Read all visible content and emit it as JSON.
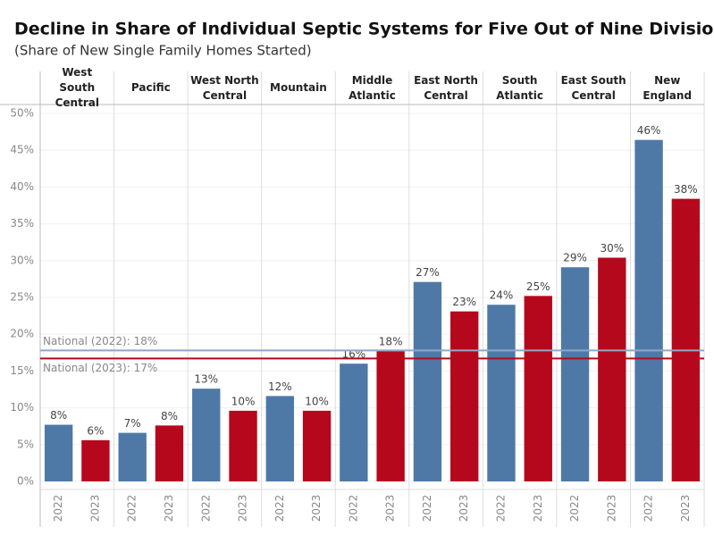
{
  "chart_data": {
    "type": "bar",
    "title": "Decline in Share of Individual Septic Systems for Five Out of Nine Divisions",
    "subtitle": "(Share of New Single Family Homes Started)",
    "categories": [
      "West South Central",
      "Pacific",
      "West North Central",
      "Mountain",
      "Middle Atlantic",
      "East North Central",
      "South Atlantic",
      "East South Central",
      "New England"
    ],
    "series": [
      {
        "name": "2022",
        "color": "#4e79a7",
        "values": [
          7.7,
          6.6,
          12.6,
          11.6,
          16.0,
          27.1,
          24.0,
          29.1,
          46.4
        ],
        "value_labels": [
          "8%",
          "7%",
          "13%",
          "12%",
          "16%",
          "27%",
          "24%",
          "29%",
          "46%"
        ]
      },
      {
        "name": "2023",
        "color": "#b5081c",
        "values": [
          5.6,
          7.6,
          9.6,
          9.6,
          17.7,
          23.1,
          25.2,
          30.4,
          38.4
        ],
        "value_labels": [
          "6%",
          "8%",
          "10%",
          "10%",
          "18%",
          "23%",
          "25%",
          "30%",
          "38%"
        ]
      }
    ],
    "reference_lines": [
      {
        "label": "National (2022): 18%",
        "value": 17.8,
        "color": "#8fa8c8"
      },
      {
        "label": "National (2023): 17%",
        "value": 16.7,
        "color": "#b5081c"
      }
    ],
    "ylim": [
      0,
      50
    ],
    "yticks": [
      {
        "value": 0,
        "label": "0%"
      },
      {
        "value": 5,
        "label": "5%"
      },
      {
        "value": 10,
        "label": "10%"
      },
      {
        "value": 15,
        "label": "15%"
      },
      {
        "value": 20,
        "label": "20%"
      },
      {
        "value": 25,
        "label": "25%"
      },
      {
        "value": 30,
        "label": "30%"
      },
      {
        "value": 35,
        "label": "35%"
      },
      {
        "value": 40,
        "label": "40%"
      },
      {
        "value": 45,
        "label": "45%"
      },
      {
        "value": 50,
        "label": "50%"
      }
    ],
    "grid": true
  }
}
